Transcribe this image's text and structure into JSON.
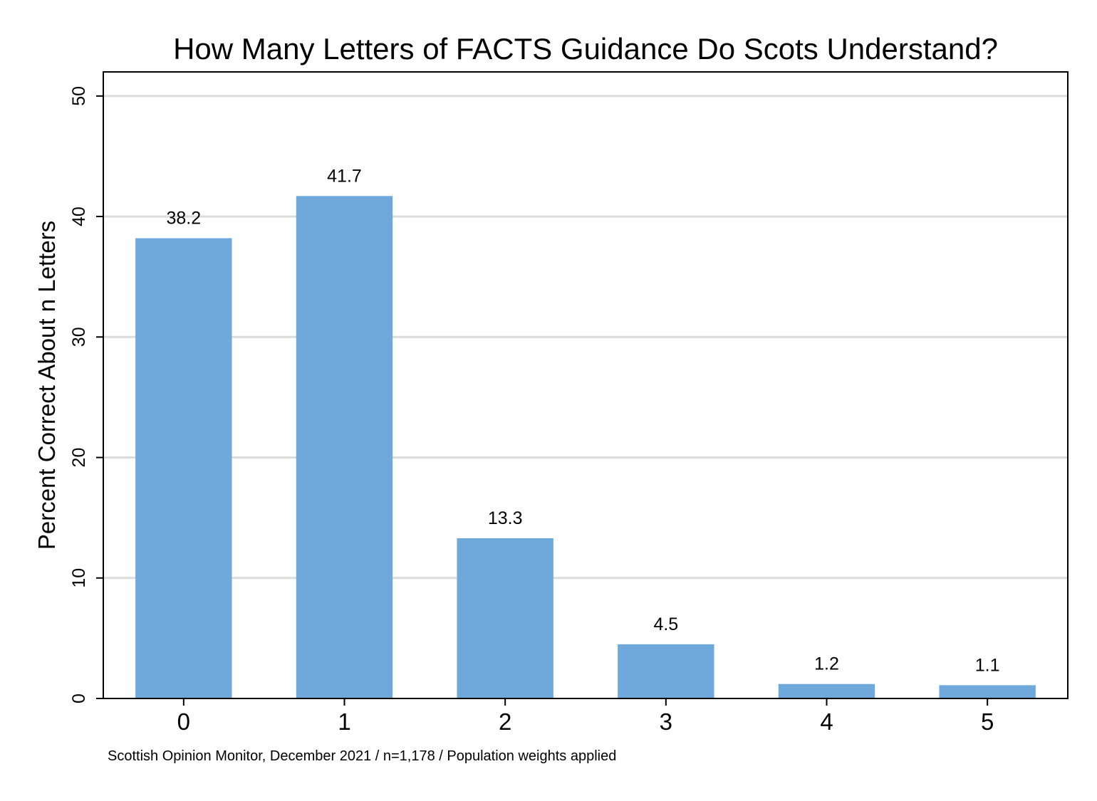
{
  "chart_data": {
    "type": "bar",
    "title": "How Many Letters of FACTS Guidance Do Scots Understand?",
    "xlabel": "",
    "ylabel": "Percent Correct About n Letters",
    "categories": [
      "0",
      "1",
      "2",
      "3",
      "4",
      "5"
    ],
    "values": [
      38.2,
      41.7,
      13.3,
      4.5,
      1.2,
      1.1
    ],
    "data_labels": [
      "38.2",
      "41.7",
      "13.3",
      "4.5",
      "1.2",
      "1.1"
    ],
    "ylim": [
      0,
      52
    ],
    "yticks": [
      0,
      10,
      20,
      30,
      40,
      50
    ],
    "ytick_labels": [
      "0",
      "10",
      "20",
      "30",
      "40",
      "50"
    ],
    "grid": true,
    "legend": "none",
    "colors": {
      "bar": "#6fa9db",
      "grid": "#dcdcdc",
      "frame": "#000000"
    },
    "note": "Scottish Opinion Monitor, December 2021 / n=1,178 / Population weights applied"
  }
}
